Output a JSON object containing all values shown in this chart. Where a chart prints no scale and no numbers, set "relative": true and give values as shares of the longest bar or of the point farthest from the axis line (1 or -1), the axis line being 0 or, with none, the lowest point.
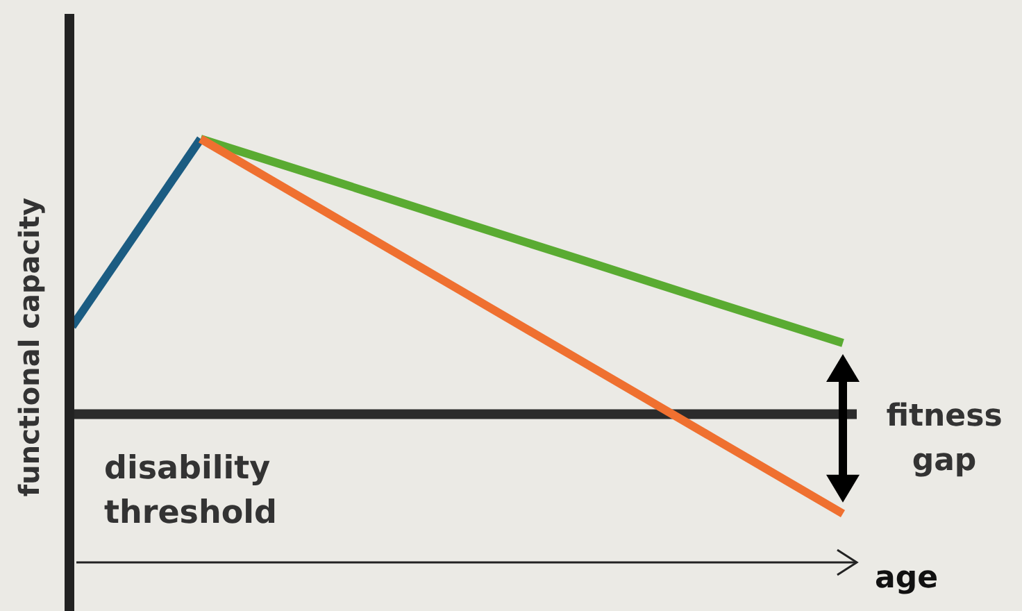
{
  "chart_data": {
    "type": "line",
    "relative": true,
    "xlabel": "age",
    "ylabel": "functional capacity",
    "line_style": "solid",
    "categories": [
      null,
      null,
      null,
      null,
      null,
      null,
      null
    ],
    "series": [
      {
        "color": "#1b5c82",
        "values": [
          0.557,
          1,
          null,
          null,
          null,
          null,
          null
        ]
      },
      {
        "color": "#5aab32",
        "values": [
          null,
          1,
          0.904,
          0.807,
          0.711,
          0.614,
          0.518
        ]
      },
      {
        "color": "#ef7030",
        "values": [
          null,
          1,
          0.823,
          0.646,
          0.469,
          0.292,
          0.115
        ]
      }
    ],
    "ref_lines": [
      {
        "axis": "y",
        "value": 0.35,
        "label": "disability threshold",
        "color": "#2b2b2b"
      }
    ],
    "annotations": [
      "fitness gap"
    ]
  }
}
